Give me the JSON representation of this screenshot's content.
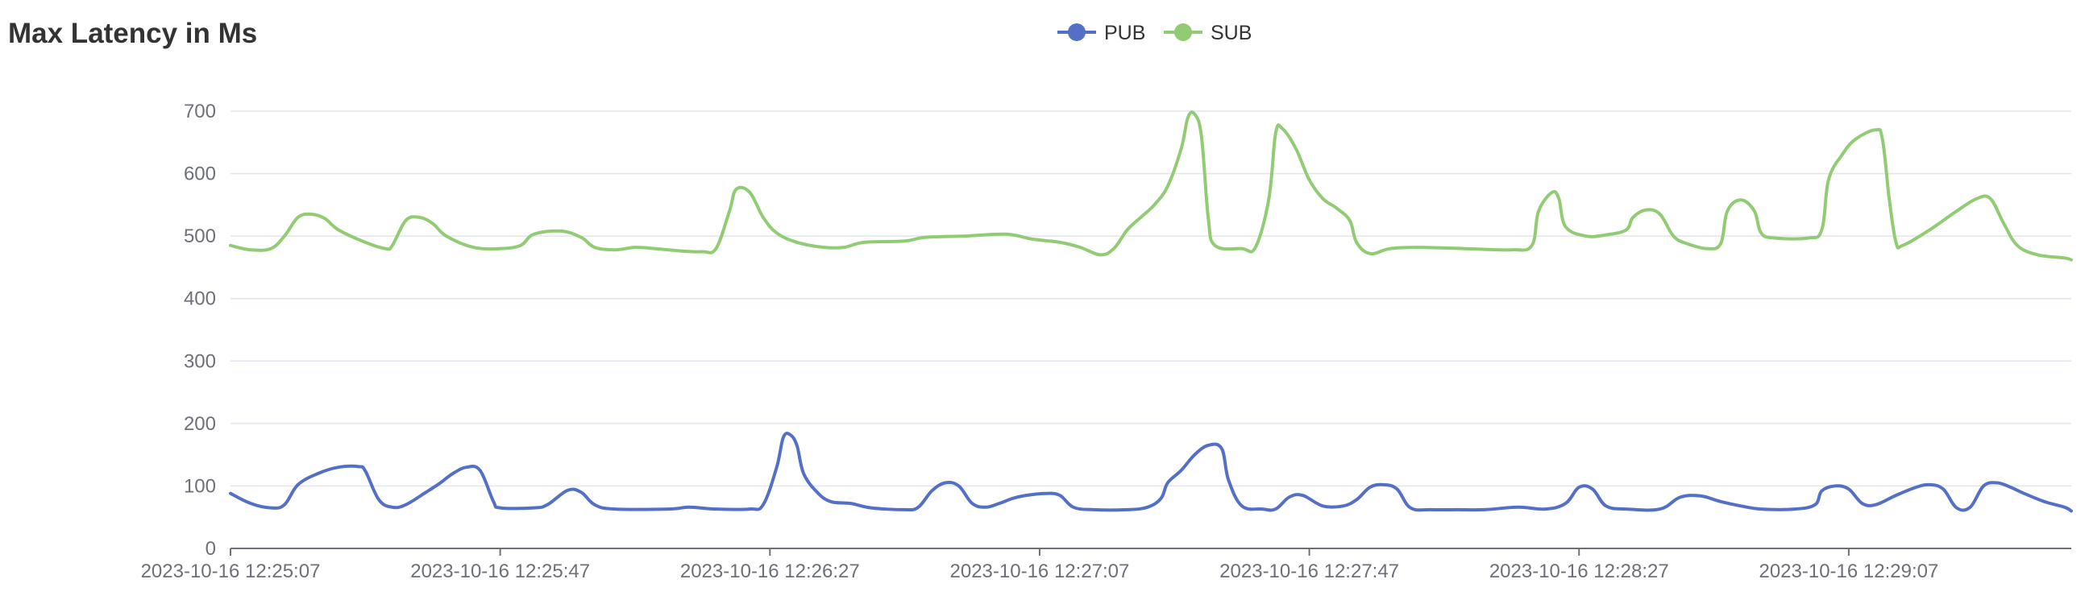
{
  "title": "Max Latency in Ms",
  "chart_data": {
    "type": "line",
    "title": "Max Latency in Ms",
    "xlabel": "",
    "ylabel": "",
    "ylim": [
      0,
      700
    ],
    "yticks": [
      0,
      100,
      200,
      300,
      400,
      500,
      600,
      700
    ],
    "x_start": "2023-10-16 12:25:07",
    "x_end": "2023-10-16 12:29:40",
    "xticks": [
      "2023-10-16 12:25:07",
      "2023-10-16 12:25:47",
      "2023-10-16 12:26:27",
      "2023-10-16 12:27:07",
      "2023-10-16 12:27:47",
      "2023-10-16 12:28:27",
      "2023-10-16 12:29:07"
    ],
    "grid": true,
    "legend_position": "top-center",
    "colors": {
      "PUB": "#5470c6",
      "SUB": "#91cc75"
    },
    "series": [
      {
        "name": "PUB",
        "values": [
          [
            "2023-10-16 12:25:07",
            88
          ],
          [
            "2023-10-16 12:25:10",
            72
          ],
          [
            "2023-10-16 12:25:13",
            65
          ],
          [
            "2023-10-16 12:25:15",
            70
          ],
          [
            "2023-10-16 12:25:17",
            102
          ],
          [
            "2023-10-16 12:25:20",
            120
          ],
          [
            "2023-10-16 12:25:23",
            130
          ],
          [
            "2023-10-16 12:25:26",
            131
          ],
          [
            "2023-10-16 12:25:27",
            124
          ],
          [
            "2023-10-16 12:25:29",
            78
          ],
          [
            "2023-10-16 12:25:31",
            66
          ],
          [
            "2023-10-16 12:25:33",
            70
          ],
          [
            "2023-10-16 12:25:36",
            90
          ],
          [
            "2023-10-16 12:25:38",
            104
          ],
          [
            "2023-10-16 12:25:40",
            120
          ],
          [
            "2023-10-16 12:25:42",
            130
          ],
          [
            "2023-10-16 12:25:44",
            125
          ],
          [
            "2023-10-16 12:25:46",
            75
          ],
          [
            "2023-10-16 12:25:47",
            65
          ],
          [
            "2023-10-16 12:25:52",
            65
          ],
          [
            "2023-10-16 12:25:54",
            70
          ],
          [
            "2023-10-16 12:25:57",
            93
          ],
          [
            "2023-10-16 12:25:59",
            90
          ],
          [
            "2023-10-16 12:26:01",
            70
          ],
          [
            "2023-10-16 12:26:04",
            63
          ],
          [
            "2023-10-16 12:26:12",
            63
          ],
          [
            "2023-10-16 12:26:15",
            66
          ],
          [
            "2023-10-16 12:26:19",
            63
          ],
          [
            "2023-10-16 12:26:24",
            63
          ],
          [
            "2023-10-16 12:26:26",
            70
          ],
          [
            "2023-10-16 12:26:28",
            130
          ],
          [
            "2023-10-16 12:26:29",
            178
          ],
          [
            "2023-10-16 12:26:30",
            182
          ],
          [
            "2023-10-16 12:26:31",
            165
          ],
          [
            "2023-10-16 12:26:32",
            120
          ],
          [
            "2023-10-16 12:26:34",
            90
          ],
          [
            "2023-10-16 12:26:36",
            75
          ],
          [
            "2023-10-16 12:26:39",
            72
          ],
          [
            "2023-10-16 12:26:42",
            65
          ],
          [
            "2023-10-16 12:26:47",
            62
          ],
          [
            "2023-10-16 12:26:49",
            66
          ],
          [
            "2023-10-16 12:26:51",
            92
          ],
          [
            "2023-10-16 12:26:53",
            105
          ],
          [
            "2023-10-16 12:26:55",
            100
          ],
          [
            "2023-10-16 12:26:57",
            72
          ],
          [
            "2023-10-16 12:26:59",
            66
          ],
          [
            "2023-10-16 12:27:01",
            72
          ],
          [
            "2023-10-16 12:27:03",
            80
          ],
          [
            "2023-10-16 12:27:05",
            85
          ],
          [
            "2023-10-16 12:27:08",
            88
          ],
          [
            "2023-10-16 12:27:10",
            85
          ],
          [
            "2023-10-16 12:27:12",
            66
          ],
          [
            "2023-10-16 12:27:15",
            62
          ],
          [
            "2023-10-16 12:27:20",
            62
          ],
          [
            "2023-10-16 12:27:23",
            66
          ],
          [
            "2023-10-16 12:27:25",
            80
          ],
          [
            "2023-10-16 12:27:26",
            105
          ],
          [
            "2023-10-16 12:27:28",
            125
          ],
          [
            "2023-10-16 12:27:30",
            150
          ],
          [
            "2023-10-16 12:27:32",
            165
          ],
          [
            "2023-10-16 12:27:34",
            160
          ],
          [
            "2023-10-16 12:27:35",
            110
          ],
          [
            "2023-10-16 12:27:37",
            68
          ],
          [
            "2023-10-16 12:27:40",
            63
          ],
          [
            "2023-10-16 12:27:42",
            63
          ],
          [
            "2023-10-16 12:27:44",
            82
          ],
          [
            "2023-10-16 12:27:46",
            85
          ],
          [
            "2023-10-16 12:27:49",
            68
          ],
          [
            "2023-10-16 12:27:52",
            68
          ],
          [
            "2023-10-16 12:27:54",
            78
          ],
          [
            "2023-10-16 12:27:56",
            98
          ],
          [
            "2023-10-16 12:27:58",
            102
          ],
          [
            "2023-10-16 12:28:00",
            95
          ],
          [
            "2023-10-16 12:28:02",
            65
          ],
          [
            "2023-10-16 12:28:05",
            62
          ],
          [
            "2023-10-16 12:28:09",
            62
          ],
          [
            "2023-10-16 12:28:13",
            62
          ],
          [
            "2023-10-16 12:28:18",
            66
          ],
          [
            "2023-10-16 12:28:22",
            63
          ],
          [
            "2023-10-16 12:28:25",
            72
          ],
          [
            "2023-10-16 12:28:27",
            98
          ],
          [
            "2023-10-16 12:28:29",
            95
          ],
          [
            "2023-10-16 12:28:31",
            68
          ],
          [
            "2023-10-16 12:28:34",
            63
          ],
          [
            "2023-10-16 12:28:39",
            63
          ],
          [
            "2023-10-16 12:28:42",
            82
          ],
          [
            "2023-10-16 12:28:45",
            84
          ],
          [
            "2023-10-16 12:28:48",
            75
          ],
          [
            "2023-10-16 12:28:51",
            68
          ],
          [
            "2023-10-16 12:28:54",
            63
          ],
          [
            "2023-10-16 12:28:59",
            63
          ],
          [
            "2023-10-16 12:29:02",
            70
          ],
          [
            "2023-10-16 12:29:03",
            92
          ],
          [
            "2023-10-16 12:29:05",
            100
          ],
          [
            "2023-10-16 12:29:07",
            95
          ],
          [
            "2023-10-16 12:29:09",
            72
          ],
          [
            "2023-10-16 12:29:11",
            70
          ],
          [
            "2023-10-16 12:29:14",
            85
          ],
          [
            "2023-10-16 12:29:17",
            98
          ],
          [
            "2023-10-16 12:29:19",
            102
          ],
          [
            "2023-10-16 12:29:21",
            95
          ],
          [
            "2023-10-16 12:29:23",
            65
          ],
          [
            "2023-10-16 12:29:25",
            66
          ],
          [
            "2023-10-16 12:29:27",
            100
          ],
          [
            "2023-10-16 12:29:29",
            105
          ],
          [
            "2023-10-16 12:29:31",
            98
          ],
          [
            "2023-10-16 12:29:33",
            88
          ],
          [
            "2023-10-16 12:29:36",
            75
          ],
          [
            "2023-10-16 12:29:39",
            66
          ],
          [
            "2023-10-16 12:29:40",
            60
          ]
        ]
      },
      {
        "name": "SUB",
        "values": [
          [
            "2023-10-16 12:25:07",
            485
          ],
          [
            "2023-10-16 12:25:10",
            478
          ],
          [
            "2023-10-16 12:25:13",
            480
          ],
          [
            "2023-10-16 12:25:15",
            500
          ],
          [
            "2023-10-16 12:25:17",
            530
          ],
          [
            "2023-10-16 12:25:19",
            535
          ],
          [
            "2023-10-16 12:25:21",
            528
          ],
          [
            "2023-10-16 12:25:23",
            510
          ],
          [
            "2023-10-16 12:25:27",
            490
          ],
          [
            "2023-10-16 12:25:30",
            480
          ],
          [
            "2023-10-16 12:25:31",
            485
          ],
          [
            "2023-10-16 12:25:33",
            525
          ],
          [
            "2023-10-16 12:25:35",
            530
          ],
          [
            "2023-10-16 12:25:37",
            520
          ],
          [
            "2023-10-16 12:25:39",
            500
          ],
          [
            "2023-10-16 12:25:43",
            482
          ],
          [
            "2023-10-16 12:25:47",
            480
          ],
          [
            "2023-10-16 12:25:50",
            485
          ],
          [
            "2023-10-16 12:25:52",
            503
          ],
          [
            "2023-10-16 12:25:56",
            508
          ],
          [
            "2023-10-16 12:25:59",
            498
          ],
          [
            "2023-10-16 12:26:01",
            482
          ],
          [
            "2023-10-16 12:26:04",
            478
          ],
          [
            "2023-10-16 12:26:07",
            482
          ],
          [
            "2023-10-16 12:26:10",
            480
          ],
          [
            "2023-10-16 12:26:14",
            476
          ],
          [
            "2023-10-16 12:26:17",
            475
          ],
          [
            "2023-10-16 12:26:19",
            480
          ],
          [
            "2023-10-16 12:26:21",
            540
          ],
          [
            "2023-10-16 12:26:22",
            575
          ],
          [
            "2023-10-16 12:26:24",
            570
          ],
          [
            "2023-10-16 12:26:26",
            530
          ],
          [
            "2023-10-16 12:26:28",
            505
          ],
          [
            "2023-10-16 12:26:31",
            490
          ],
          [
            "2023-10-16 12:26:35",
            482
          ],
          [
            "2023-10-16 12:26:38",
            482
          ],
          [
            "2023-10-16 12:26:41",
            490
          ],
          [
            "2023-10-16 12:26:47",
            492
          ],
          [
            "2023-10-16 12:26:50",
            498
          ],
          [
            "2023-10-16 12:26:56",
            500
          ],
          [
            "2023-10-16 12:27:02",
            503
          ],
          [
            "2023-10-16 12:27:06",
            495
          ],
          [
            "2023-10-16 12:27:10",
            490
          ],
          [
            "2023-10-16 12:27:13",
            482
          ],
          [
            "2023-10-16 12:27:16",
            470
          ],
          [
            "2023-10-16 12:27:18",
            480
          ],
          [
            "2023-10-16 12:27:20",
            510
          ],
          [
            "2023-10-16 12:27:22",
            530
          ],
          [
            "2023-10-16 12:27:24",
            550
          ],
          [
            "2023-10-16 12:27:26",
            580
          ],
          [
            "2023-10-16 12:27:28",
            640
          ],
          [
            "2023-10-16 12:27:29",
            690
          ],
          [
            "2023-10-16 12:27:30",
            695
          ],
          [
            "2023-10-16 12:27:31",
            660
          ],
          [
            "2023-10-16 12:27:32",
            530
          ],
          [
            "2023-10-16 12:27:33",
            485
          ],
          [
            "2023-10-16 12:27:37",
            480
          ],
          [
            "2023-10-16 12:27:39",
            482
          ],
          [
            "2023-10-16 12:27:41",
            560
          ],
          [
            "2023-10-16 12:27:42",
            665
          ],
          [
            "2023-10-16 12:27:43",
            672
          ],
          [
            "2023-10-16 12:27:45",
            640
          ],
          [
            "2023-10-16 12:27:47",
            590
          ],
          [
            "2023-10-16 12:27:49",
            560
          ],
          [
            "2023-10-16 12:27:51",
            545
          ],
          [
            "2023-10-16 12:27:53",
            525
          ],
          [
            "2023-10-16 12:27:54",
            490
          ],
          [
            "2023-10-16 12:27:56",
            472
          ],
          [
            "2023-10-16 12:27:59",
            480
          ],
          [
            "2023-10-16 12:28:03",
            482
          ],
          [
            "2023-10-16 12:28:10",
            480
          ],
          [
            "2023-10-16 12:28:17",
            478
          ],
          [
            "2023-10-16 12:28:20",
            485
          ],
          [
            "2023-10-16 12:28:21",
            540
          ],
          [
            "2023-10-16 12:28:23",
            570
          ],
          [
            "2023-10-16 12:28:24",
            560
          ],
          [
            "2023-10-16 12:28:25",
            515
          ],
          [
            "2023-10-16 12:28:28",
            500
          ],
          [
            "2023-10-16 12:28:31",
            502
          ],
          [
            "2023-10-16 12:28:34",
            510
          ],
          [
            "2023-10-16 12:28:35",
            530
          ],
          [
            "2023-10-16 12:28:37",
            542
          ],
          [
            "2023-10-16 12:28:39",
            535
          ],
          [
            "2023-10-16 12:28:41",
            500
          ],
          [
            "2023-10-16 12:28:43",
            488
          ],
          [
            "2023-10-16 12:28:46",
            480
          ],
          [
            "2023-10-16 12:28:48",
            488
          ],
          [
            "2023-10-16 12:28:49",
            540
          ],
          [
            "2023-10-16 12:28:51",
            558
          ],
          [
            "2023-10-16 12:28:53",
            540
          ],
          [
            "2023-10-16 12:28:54",
            505
          ],
          [
            "2023-10-16 12:28:56",
            497
          ],
          [
            "2023-10-16 12:29:01",
            497
          ],
          [
            "2023-10-16 12:29:03",
            510
          ],
          [
            "2023-10-16 12:29:04",
            590
          ],
          [
            "2023-10-16 12:29:06",
            630
          ],
          [
            "2023-10-16 12:29:08",
            655
          ],
          [
            "2023-10-16 12:29:11",
            670
          ],
          [
            "2023-10-16 12:29:12",
            655
          ],
          [
            "2023-10-16 12:29:13",
            560
          ],
          [
            "2023-10-16 12:29:14",
            490
          ],
          [
            "2023-10-16 12:29:15",
            485
          ],
          [
            "2023-10-16 12:29:19",
            510
          ],
          [
            "2023-10-16 12:29:23",
            540
          ],
          [
            "2023-10-16 12:29:26",
            560
          ],
          [
            "2023-10-16 12:29:28",
            560
          ],
          [
            "2023-10-16 12:29:30",
            520
          ],
          [
            "2023-10-16 12:29:32",
            485
          ],
          [
            "2023-10-16 12:29:35",
            470
          ],
          [
            "2023-10-16 12:29:39",
            465
          ],
          [
            "2023-10-16 12:29:40",
            462
          ]
        ]
      }
    ]
  }
}
